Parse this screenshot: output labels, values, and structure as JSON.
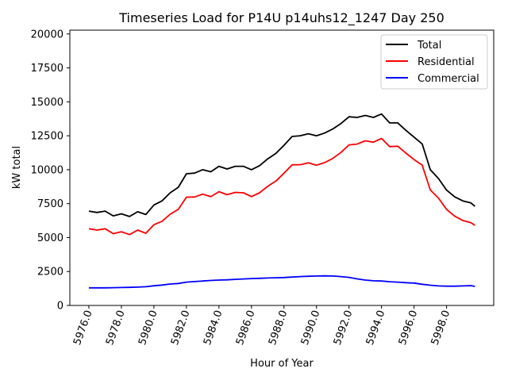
{
  "chart_data": {
    "type": "line",
    "title": "Timeseries Load for P14U p14uhs12_1247  Day 250",
    "xlabel": "Hour of Year",
    "ylabel": "kW total",
    "xlim": [
      5974.83,
      6000.9
    ],
    "ylim": [
      0,
      20280
    ],
    "xticks": [
      5976,
      5978,
      5980,
      5982,
      5984,
      5986,
      5988,
      5990,
      5992,
      5994,
      5996,
      5998
    ],
    "xtick_labels": [
      "5976.0",
      "5978.0",
      "5980.0",
      "5982.0",
      "5984.0",
      "5986.0",
      "5988.0",
      "5990.0",
      "5992.0",
      "5994.0",
      "5996.0",
      "5998.0"
    ],
    "yticks": [
      0,
      2500,
      5000,
      7500,
      10000,
      12500,
      15000,
      17500,
      20000
    ],
    "ytick_labels": [
      "0",
      "2500",
      "5000",
      "7500",
      "10000",
      "12500",
      "15000",
      "17500",
      "20000"
    ],
    "legend_placement": "top-right",
    "x": [
      5976,
      5976.5,
      5977,
      5977.5,
      5978,
      5978.5,
      5979,
      5979.5,
      5980,
      5980.5,
      5981,
      5981.5,
      5982,
      5982.5,
      5983,
      5983.5,
      5984,
      5984.5,
      5985,
      5985.5,
      5986,
      5986.5,
      5987,
      5987.5,
      5988,
      5988.5,
      5989,
      5989.5,
      5990,
      5990.5,
      5991,
      5991.5,
      5992,
      5992.5,
      5993,
      5993.5,
      5994,
      5994.5,
      5995,
      5995.5,
      5996,
      5996.5,
      5997,
      5997.5,
      5998,
      5998.5,
      5999,
      5999.5,
      5999.75
    ],
    "series": [
      {
        "name": "Total",
        "color": "#000000",
        "values": [
          6950,
          6850,
          6950,
          6600,
          6750,
          6550,
          6900,
          6700,
          7400,
          7700,
          8300,
          8700,
          9700,
          9750,
          10000,
          9850,
          10250,
          10050,
          10250,
          10250,
          10000,
          10300,
          10800,
          11200,
          11800,
          12450,
          12500,
          12650,
          12500,
          12700,
          13000,
          13400,
          13900,
          13850,
          14000,
          13850,
          14100,
          13450,
          13450,
          12900,
          12400,
          11900,
          10000,
          9350,
          8500,
          8000,
          7700,
          7550,
          7300
        ]
      },
      {
        "name": "Residential",
        "color": "#ff0000",
        "values": [
          5650,
          5550,
          5650,
          5290,
          5430,
          5220,
          5550,
          5320,
          5950,
          6200,
          6720,
          7080,
          7980,
          7990,
          8200,
          8010,
          8380,
          8160,
          8330,
          8300,
          8020,
          8300,
          8780,
          9160,
          9740,
          10360,
          10370,
          10500,
          10330,
          10520,
          10830,
          11270,
          11830,
          11890,
          12130,
          12030,
          12300,
          11700,
          11730,
          11220,
          10750,
          10340,
          8510,
          7910,
          7080,
          6580,
          6260,
          6090,
          5900
        ]
      },
      {
        "name": "Commercial",
        "color": "#0000ff",
        "values": [
          1300,
          1300,
          1300,
          1310,
          1320,
          1330,
          1350,
          1380,
          1450,
          1500,
          1580,
          1620,
          1720,
          1760,
          1800,
          1840,
          1870,
          1890,
          1920,
          1950,
          1980,
          2000,
          2020,
          2040,
          2060,
          2090,
          2130,
          2150,
          2170,
          2180,
          2170,
          2130,
          2070,
          1960,
          1870,
          1820,
          1800,
          1750,
          1720,
          1680,
          1650,
          1560,
          1490,
          1440,
          1420,
          1420,
          1440,
          1460,
          1400
        ]
      }
    ]
  }
}
